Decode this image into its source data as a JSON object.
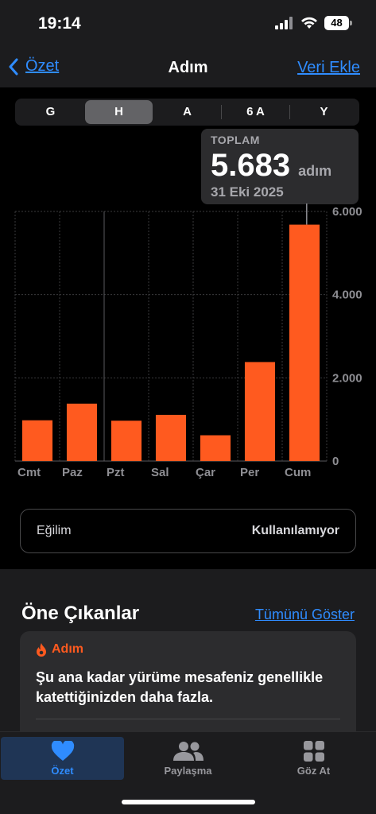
{
  "status": {
    "time": "19:14",
    "battery": "48"
  },
  "nav": {
    "back_label": "Özet",
    "title": "Adım",
    "action_label": "Veri Ekle"
  },
  "segments": [
    {
      "label": "G",
      "active": false
    },
    {
      "label": "H",
      "active": true
    },
    {
      "label": "A",
      "active": false
    },
    {
      "label": "6 A",
      "active": false
    },
    {
      "label": "Y",
      "active": false
    }
  ],
  "tooltip": {
    "label": "TOPLAM",
    "value": "5.683",
    "unit": "adım",
    "date": "31 Eki 2025"
  },
  "colors": {
    "accent": "#2f8cff",
    "bar": "#ff5a1f",
    "background": "#000000",
    "panel": "#1c1c1e"
  },
  "chart_data": {
    "type": "bar",
    "categories": [
      "Cmt",
      "Paz",
      "Pzt",
      "Sal",
      "Çar",
      "Per",
      "Cum"
    ],
    "values": [
      980,
      1380,
      970,
      1110,
      620,
      2380,
      5683
    ],
    "ylim": [
      0,
      6000
    ],
    "yticks": [
      "6.000",
      "4.000",
      "2.000",
      "0"
    ],
    "ytick_values": [
      6000,
      4000,
      2000,
      0
    ],
    "selected_index": 6,
    "grid": true
  },
  "trend": {
    "label": "Eğilim",
    "value": "Kullanılamıyor"
  },
  "highlights": {
    "title": "Öne Çıkanlar",
    "show_all": "Tümünü Göster",
    "card_category": "Adım",
    "card_text": "Şu ana kadar yürüme mesafeniz genellikle katettiğinizden daha fazla."
  },
  "tabs": [
    {
      "label": "Özet",
      "icon": "heart-icon",
      "active": true
    },
    {
      "label": "Paylaşma",
      "icon": "people-icon",
      "active": false
    },
    {
      "label": "Göz At",
      "icon": "grid-icon",
      "active": false
    }
  ]
}
